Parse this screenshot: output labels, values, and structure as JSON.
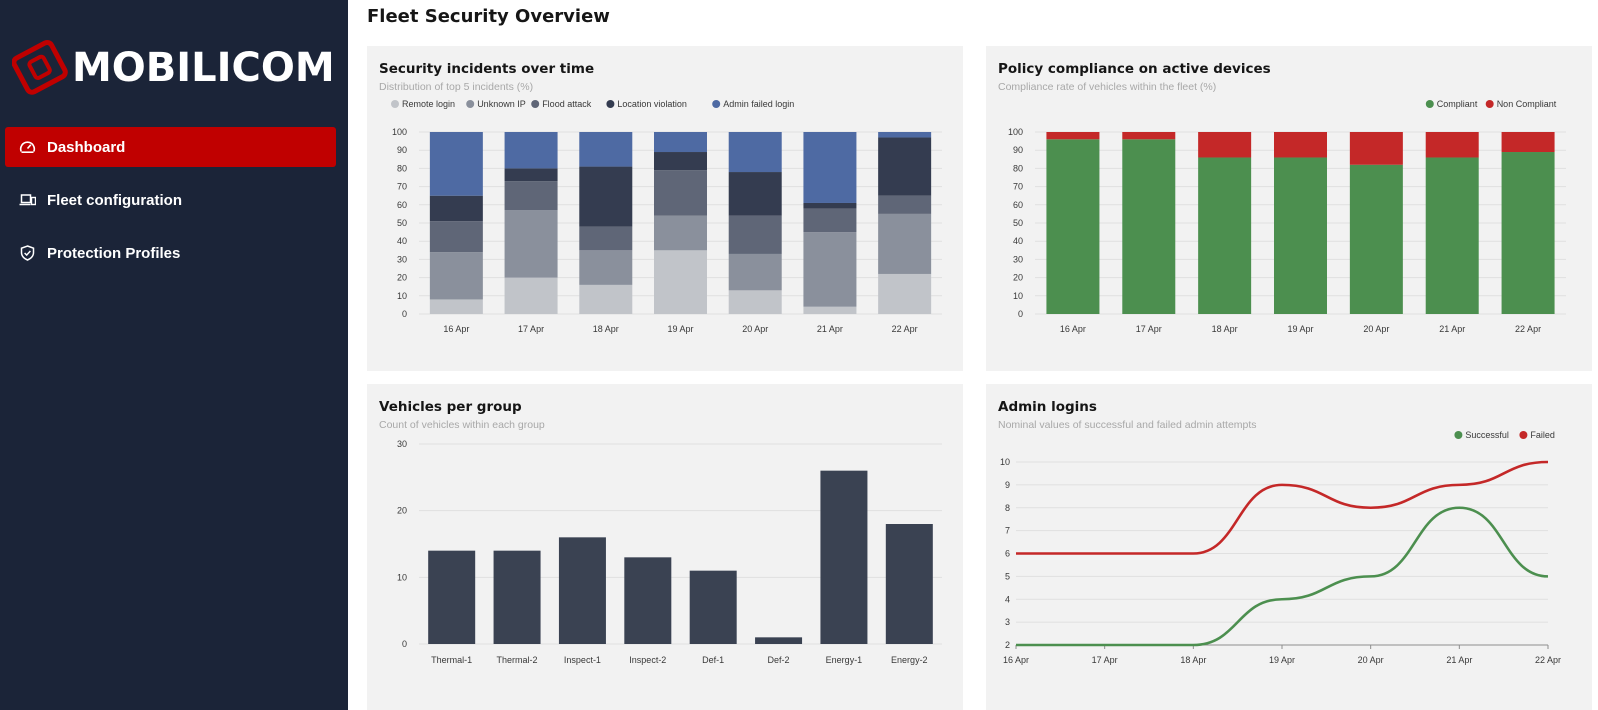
{
  "brand": {
    "name": "MOBILICOM",
    "accent": "#c00000",
    "sidebar_bg": "#1b2438"
  },
  "nav": {
    "items": [
      {
        "label": "Dashboard",
        "icon": "gauge-icon",
        "active": true
      },
      {
        "label": "Fleet configuration",
        "icon": "devices-icon",
        "active": false
      },
      {
        "label": "Protection Profiles",
        "icon": "shield-check-icon",
        "active": false
      }
    ]
  },
  "page": {
    "title": "Fleet Security Overview"
  },
  "cards": {
    "incidents": {
      "title": "Security incidents over time",
      "subtitle": "Distribution of top 5 incidents (%)"
    },
    "compliance": {
      "title": "Policy compliance on active devices",
      "subtitle": "Compliance rate of vehicles within the fleet (%)"
    },
    "vehicles": {
      "title": "Vehicles per group",
      "subtitle": "Count of vehicles within each group"
    },
    "logins": {
      "title": "Admin logins",
      "subtitle": "Nominal values of successful and failed admin attempts"
    }
  },
  "chart_data": [
    {
      "id": "incidents",
      "type": "bar",
      "stacked": true,
      "categories": [
        "16 Apr",
        "17 Apr",
        "18 Apr",
        "19 Apr",
        "20 Apr",
        "21 Apr",
        "22 Apr"
      ],
      "series": [
        {
          "name": "Remote login",
          "color": "#c1c4c9",
          "values": [
            8,
            20,
            16,
            35,
            13,
            4,
            22
          ]
        },
        {
          "name": "Unknown IP",
          "color": "#8a909c",
          "values": [
            26,
            37,
            19,
            19,
            20,
            41,
            33
          ]
        },
        {
          "name": "Flood attack",
          "color": "#5f6677",
          "values": [
            17,
            16,
            13,
            25,
            21,
            13,
            10
          ]
        },
        {
          "name": "Location violation",
          "color": "#343c50",
          "values": [
            14,
            7,
            33,
            10,
            24,
            3,
            32
          ]
        },
        {
          "name": "Admin failed login",
          "color": "#4e6aa3",
          "values": [
            35,
            20,
            19,
            11,
            22,
            39,
            3
          ]
        }
      ],
      "ylim": [
        0,
        100
      ],
      "yticks": [
        0,
        10,
        20,
        30,
        40,
        50,
        60,
        70,
        80,
        90,
        100
      ],
      "grid": true,
      "legend": "top-left"
    },
    {
      "id": "compliance",
      "type": "bar",
      "stacked": true,
      "categories": [
        "16 Apr",
        "17 Apr",
        "18 Apr",
        "19 Apr",
        "20 Apr",
        "21 Apr",
        "22 Apr"
      ],
      "series": [
        {
          "name": "Compliant",
          "color": "#4c8f4f",
          "values": [
            96,
            96,
            86,
            86,
            82,
            86,
            89
          ]
        },
        {
          "name": "Non Compliant",
          "color": "#c42828",
          "values": [
            4,
            4,
            14,
            14,
            18,
            14,
            11
          ]
        }
      ],
      "ylim": [
        0,
        100
      ],
      "yticks": [
        0,
        10,
        20,
        30,
        40,
        50,
        60,
        70,
        80,
        90,
        100
      ],
      "grid": true,
      "legend": "top-right"
    },
    {
      "id": "vehicles",
      "type": "bar",
      "categories": [
        "Thermal-1",
        "Thermal-2",
        "Inspect-1",
        "Inspect-2",
        "Def-1",
        "Def-2",
        "Energy-1",
        "Energy-2"
      ],
      "values": [
        14,
        14,
        16,
        13,
        11,
        1,
        26,
        18
      ],
      "color": "#3a4252",
      "ylim": [
        0,
        30
      ],
      "yticks": [
        0,
        10,
        20,
        30
      ],
      "grid": true
    },
    {
      "id": "logins",
      "type": "line",
      "x": [
        "16 Apr",
        "17 Apr",
        "18 Apr",
        "19 Apr",
        "20 Apr",
        "21 Apr",
        "22 Apr"
      ],
      "series": [
        {
          "name": "Successful",
          "color": "#4c8f4f",
          "values": [
            2,
            2,
            2,
            4,
            5,
            8,
            5
          ]
        },
        {
          "name": "Failed",
          "color": "#c42828",
          "values": [
            6,
            6,
            6,
            9,
            8,
            9,
            10
          ]
        }
      ],
      "ylim": [
        2,
        10
      ],
      "yticks": [
        2,
        3,
        4,
        5,
        6,
        7,
        8,
        9,
        10
      ],
      "grid": true,
      "legend": "top-right"
    }
  ]
}
